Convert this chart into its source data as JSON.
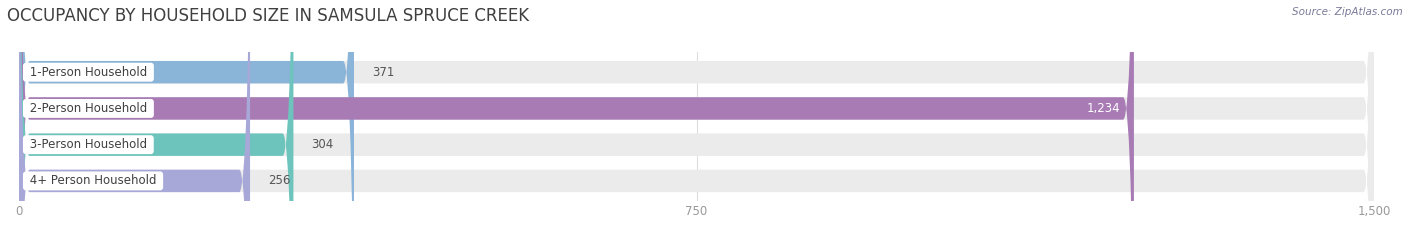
{
  "title": "OCCUPANCY BY HOUSEHOLD SIZE IN SAMSULA SPRUCE CREEK",
  "source": "Source: ZipAtlas.com",
  "categories": [
    "1-Person Household",
    "2-Person Household",
    "3-Person Household",
    "4+ Person Household"
  ],
  "values": [
    371,
    1234,
    304,
    256
  ],
  "bar_colors": [
    "#8ab4d8",
    "#a87bb5",
    "#6dc4bc",
    "#a8a8d8"
  ],
  "xlim": [
    0,
    1500
  ],
  "xtick_labels": [
    "0",
    "750",
    "1,500"
  ],
  "xtick_values": [
    0,
    750,
    1500
  ],
  "background_color": "#ffffff",
  "bar_bg_color": "#ebebeb",
  "title_fontsize": 12,
  "label_fontsize": 8.5,
  "value_label_color_inside": "#ffffff",
  "value_label_color_outside": "#555555",
  "source_color": "#7a7a9a",
  "tick_color": "#999999",
  "title_color": "#404040"
}
